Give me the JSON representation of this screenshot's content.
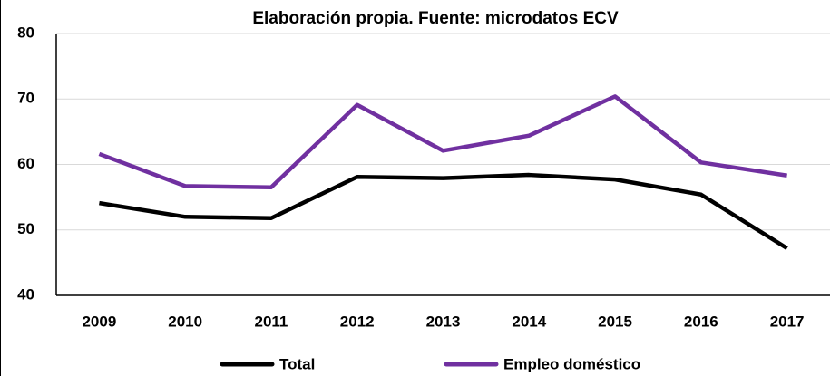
{
  "chart_data": {
    "type": "line",
    "title": "Elaboración propia. Fuente: microdatos ECV",
    "categories": [
      "2009",
      "2010",
      "2011",
      "2012",
      "2013",
      "2014",
      "2015",
      "2016",
      "2017"
    ],
    "series": [
      {
        "name": "Total",
        "color": "#000000",
        "values": [
          54.1,
          52.0,
          51.8,
          58.1,
          57.9,
          58.4,
          57.7,
          55.4,
          47.2
        ]
      },
      {
        "name": "Empleo doméstico",
        "color": "#7030a0",
        "values": [
          61.6,
          56.7,
          56.5,
          69.1,
          62.1,
          64.4,
          70.4,
          60.3,
          58.3
        ]
      }
    ],
    "ylim": [
      40,
      80
    ],
    "yticks": [
      40,
      50,
      60,
      70,
      80
    ],
    "grid": true
  }
}
